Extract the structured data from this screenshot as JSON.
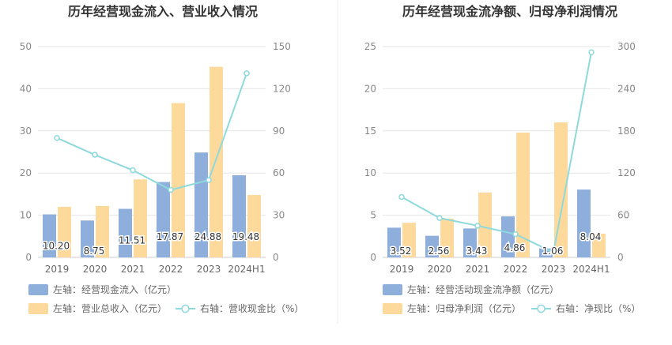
{
  "colors": {
    "bar_left": "#8eaedb",
    "bar_right": "#fdd99b",
    "line": "#8ed9dc",
    "grid": "#e6e6e6",
    "divider": "#eeeeee"
  },
  "chart_data": [
    {
      "type": "bar",
      "title": "历年经营现金流入、营业收入情况",
      "categories": [
        "2019",
        "2020",
        "2021",
        "2022",
        "2023",
        "2024H1"
      ],
      "series": [
        {
          "name": "左轴：经营现金流入（亿元）",
          "axis": "left",
          "kind": "bar",
          "values": [
            10.2,
            8.75,
            11.51,
            17.87,
            24.88,
            19.48
          ],
          "labels": [
            "10.20",
            "8.75",
            "11.51",
            "17.87",
            "24.88",
            "19.48"
          ]
        },
        {
          "name": "左轴：营业总收入（亿元）",
          "axis": "left",
          "kind": "bar",
          "values": [
            12.0,
            12.2,
            18.5,
            36.6,
            45.2,
            14.8
          ]
        },
        {
          "name": "右轴：营收现金比（%）",
          "axis": "right",
          "kind": "line",
          "values": [
            85,
            73,
            62,
            48,
            55,
            131
          ]
        }
      ],
      "left_axis": {
        "min": 0,
        "max": 50,
        "ticks": [
          0,
          10,
          20,
          30,
          40,
          50
        ]
      },
      "right_axis": {
        "min": 0,
        "max": 150,
        "ticks": [
          0,
          30,
          60,
          90,
          120,
          150
        ]
      },
      "legend": [
        {
          "label": "左轴：经营现金流入（亿元）",
          "kind": "bar_left"
        },
        {
          "label": "左轴：营业总收入（亿元）",
          "kind": "bar_right"
        },
        {
          "label": "右轴：营收现金比（%）",
          "kind": "line"
        }
      ]
    },
    {
      "type": "bar",
      "title": "历年经营现金流净额、归母净利润情况",
      "categories": [
        "2019",
        "2020",
        "2021",
        "2022",
        "2023",
        "2024H1"
      ],
      "series": [
        {
          "name": "左轴：经营活动现金流净额（亿元）",
          "axis": "left",
          "kind": "bar",
          "values": [
            3.52,
            2.56,
            3.43,
            4.86,
            1.06,
            8.04
          ],
          "labels": [
            "3.52",
            "2.56",
            "3.43",
            "4.86",
            "1.06",
            "8.04"
          ]
        },
        {
          "name": "左轴：归母净利润（亿元）",
          "axis": "left",
          "kind": "bar",
          "values": [
            4.1,
            4.6,
            7.7,
            14.8,
            16.0,
            2.8
          ]
        },
        {
          "name": "右轴：净现比（%）",
          "axis": "right",
          "kind": "line",
          "values": [
            86,
            56,
            45,
            33,
            7,
            292
          ]
        }
      ],
      "left_axis": {
        "min": 0,
        "max": 25,
        "ticks": [
          0,
          5,
          10,
          15,
          20,
          25
        ]
      },
      "right_axis": {
        "min": 0,
        "max": 300,
        "ticks": [
          0,
          60,
          120,
          180,
          240,
          300
        ]
      },
      "legend": [
        {
          "label": "左轴：经营活动现金流净额（亿元）",
          "kind": "bar_left"
        },
        {
          "label": "左轴：归母净利润（亿元）",
          "kind": "bar_right"
        },
        {
          "label": "右轴：净现比（%）",
          "kind": "line"
        }
      ]
    }
  ]
}
